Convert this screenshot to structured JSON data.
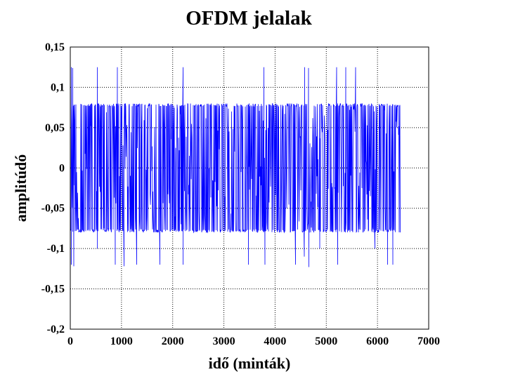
{
  "chart_data": {
    "type": "line",
    "title": "OFDM jelalak",
    "xlabel": "idő (minták)",
    "ylabel": "amplitúdó",
    "xlim": [
      0,
      7000
    ],
    "ylim": [
      -0.2,
      0.15
    ],
    "x_ticks": [
      0,
      1000,
      2000,
      3000,
      4000,
      5000,
      6000,
      7000
    ],
    "x_tick_labels": [
      "0",
      "1000",
      "2000",
      "3000",
      "4000",
      "5000",
      "6000",
      "7000"
    ],
    "y_ticks": [
      0.15,
      0.1,
      0.05,
      0,
      -0.05,
      -0.1,
      -0.15,
      -0.2
    ],
    "y_tick_labels": [
      "0,15",
      "0,1",
      "0,05",
      "0",
      "-0,05",
      "-0,1",
      "-0,15",
      "-0,2"
    ],
    "grid": true,
    "series": [
      {
        "color": "#0000ff",
        "sample_range": [
          0,
          6450
        ],
        "typical_envelope": [
          -0.08,
          0.08
        ],
        "peak_max": 0.125,
        "peak_min": -0.123,
        "positive_peaks": [
          {
            "x": 20,
            "y": 0.125
          },
          {
            "x": 50,
            "y": 0.124
          },
          {
            "x": 530,
            "y": 0.125
          },
          {
            "x": 920,
            "y": 0.125
          },
          {
            "x": 2200,
            "y": 0.125
          },
          {
            "x": 3780,
            "y": 0.125
          },
          {
            "x": 4580,
            "y": 0.125
          },
          {
            "x": 4650,
            "y": 0.124
          },
          {
            "x": 5200,
            "y": 0.125
          },
          {
            "x": 5380,
            "y": 0.125
          },
          {
            "x": 5570,
            "y": 0.125
          }
        ],
        "negative_peaks": [
          {
            "x": 20,
            "y": -0.12
          },
          {
            "x": 70,
            "y": -0.122
          },
          {
            "x": 530,
            "y": -0.1
          },
          {
            "x": 880,
            "y": -0.12
          },
          {
            "x": 1050,
            "y": -0.122
          },
          {
            "x": 1300,
            "y": -0.12
          },
          {
            "x": 1750,
            "y": -0.12
          },
          {
            "x": 2200,
            "y": -0.12
          },
          {
            "x": 3480,
            "y": -0.12
          },
          {
            "x": 3800,
            "y": -0.12
          },
          {
            "x": 4400,
            "y": -0.12
          },
          {
            "x": 4570,
            "y": -0.11
          },
          {
            "x": 4660,
            "y": -0.123
          },
          {
            "x": 4870,
            "y": -0.1
          },
          {
            "x": 5220,
            "y": -0.12
          },
          {
            "x": 5950,
            "y": -0.1
          },
          {
            "x": 6200,
            "y": -0.12
          },
          {
            "x": 6300,
            "y": -0.12
          }
        ]
      }
    ]
  }
}
